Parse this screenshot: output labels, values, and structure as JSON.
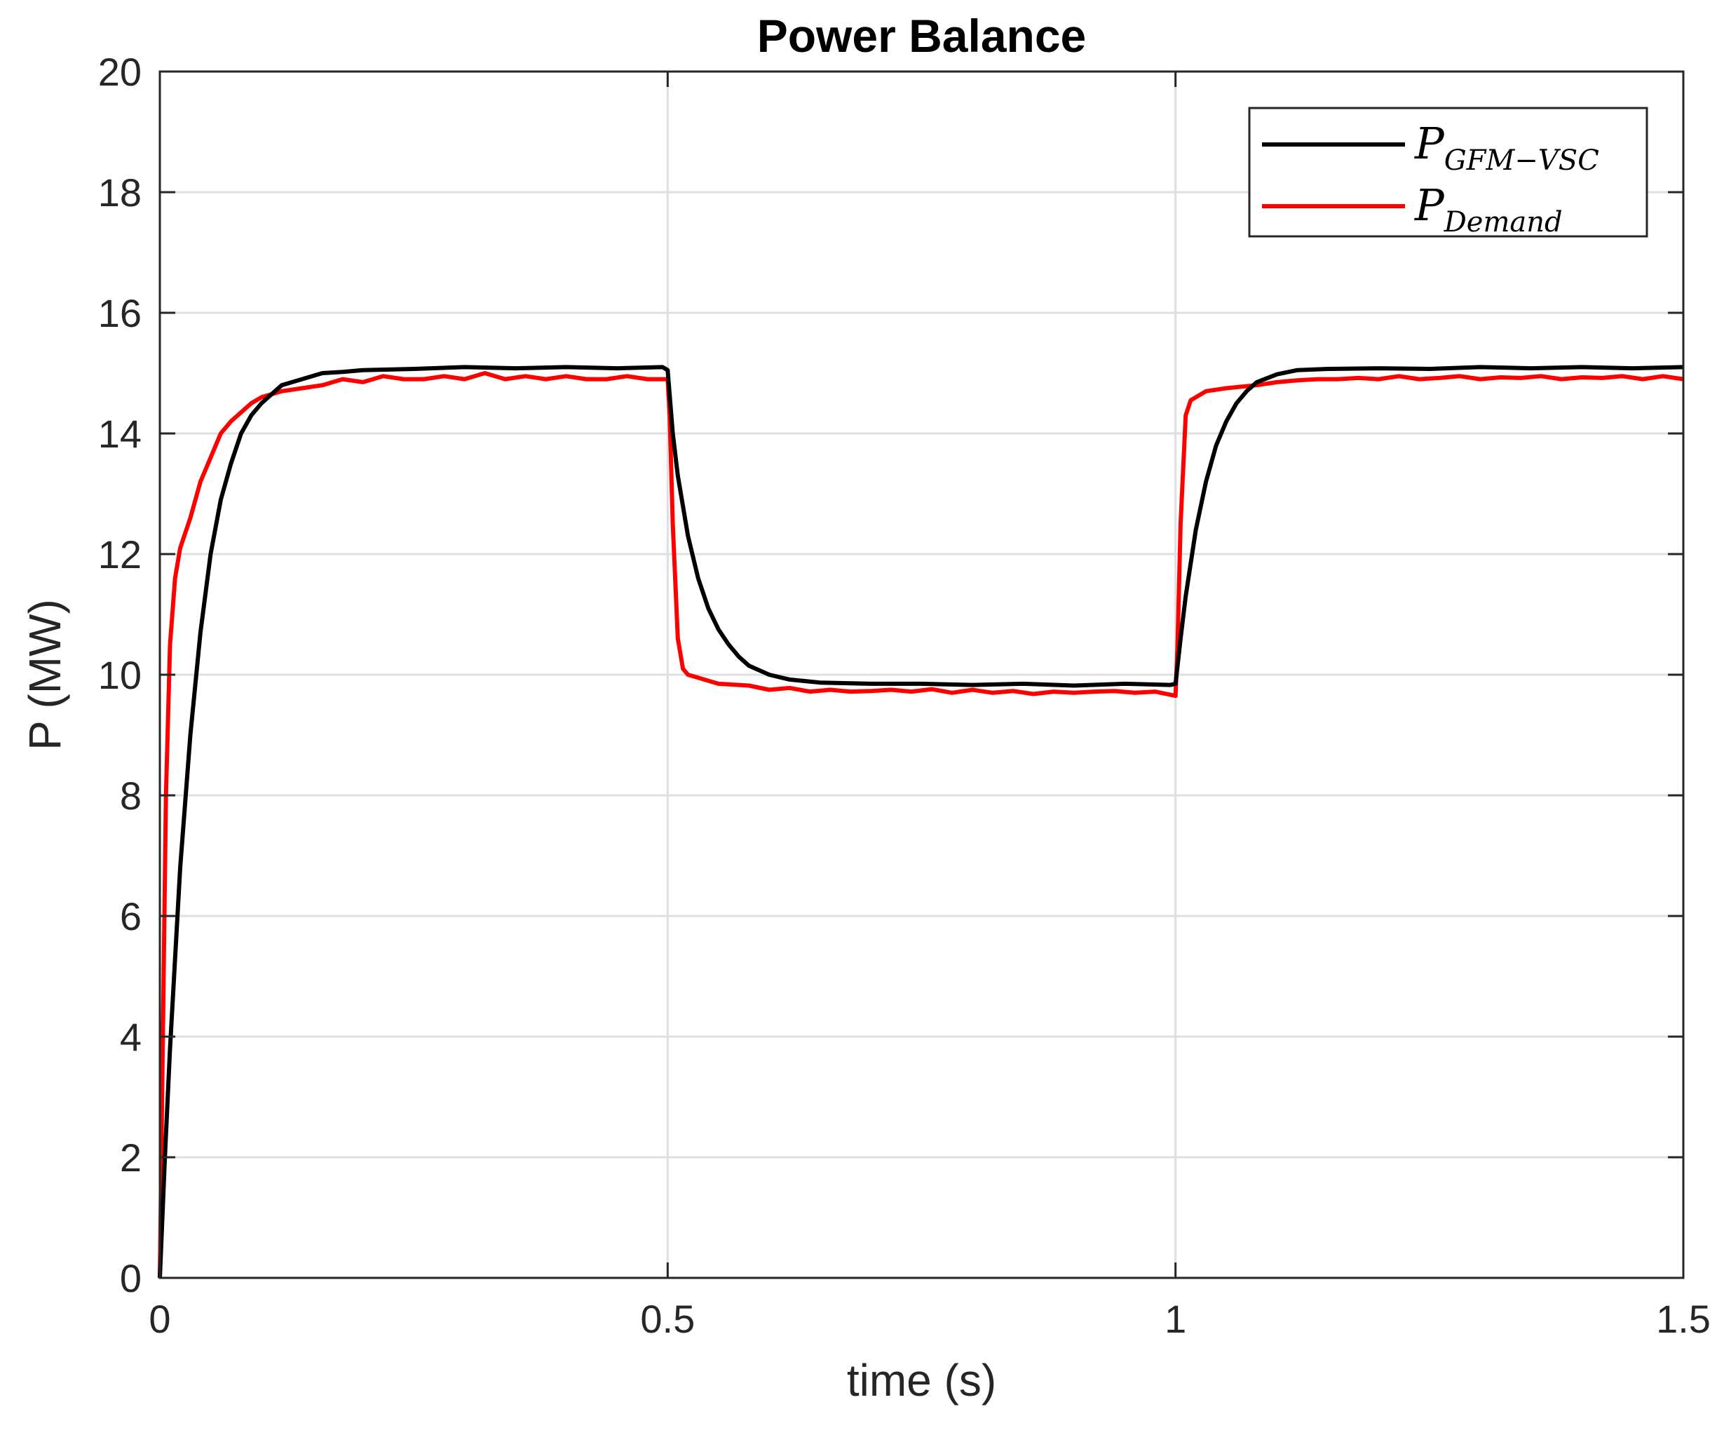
{
  "chart_data": {
    "type": "line",
    "title": "Power Balance",
    "xlabel": "time (s)",
    "ylabel": "P (MW)",
    "xlim": [
      0,
      1.5
    ],
    "ylim": [
      0,
      20
    ],
    "xticks": [
      0,
      0.5,
      1,
      1.5
    ],
    "xtick_labels": [
      "0",
      "0.5",
      "1",
      "1.5"
    ],
    "yticks": [
      0,
      2,
      4,
      6,
      8,
      10,
      12,
      14,
      16,
      18,
      20
    ],
    "ytick_labels": [
      "0",
      "2",
      "4",
      "6",
      "8",
      "10",
      "12",
      "14",
      "16",
      "18",
      "20"
    ],
    "grid": true,
    "legend": {
      "placement": "top-right"
    },
    "series": [
      {
        "name": "P_GFM-VSC",
        "label_main": "P",
        "label_sub": "GFM−VSC",
        "color": "#000000",
        "x": [
          0,
          0.005,
          0.01,
          0.02,
          0.03,
          0.04,
          0.05,
          0.06,
          0.07,
          0.08,
          0.09,
          0.1,
          0.12,
          0.14,
          0.16,
          0.18,
          0.2,
          0.25,
          0.3,
          0.35,
          0.4,
          0.45,
          0.495,
          0.5,
          0.505,
          0.51,
          0.52,
          0.53,
          0.54,
          0.55,
          0.56,
          0.57,
          0.58,
          0.6,
          0.62,
          0.65,
          0.7,
          0.75,
          0.8,
          0.85,
          0.9,
          0.95,
          0.995,
          1.0,
          1.005,
          1.01,
          1.02,
          1.03,
          1.04,
          1.05,
          1.06,
          1.07,
          1.08,
          1.1,
          1.12,
          1.15,
          1.2,
          1.25,
          1.3,
          1.35,
          1.4,
          1.45,
          1.5
        ],
        "y": [
          0,
          2.0,
          3.8,
          6.8,
          9.0,
          10.7,
          12.0,
          12.9,
          13.5,
          14.0,
          14.3,
          14.5,
          14.8,
          14.9,
          15.0,
          15.02,
          15.05,
          15.07,
          15.1,
          15.08,
          15.1,
          15.08,
          15.1,
          15.05,
          14.0,
          13.3,
          12.3,
          11.6,
          11.1,
          10.75,
          10.5,
          10.3,
          10.15,
          10.0,
          9.92,
          9.87,
          9.85,
          9.85,
          9.83,
          9.85,
          9.82,
          9.85,
          9.83,
          9.85,
          10.6,
          11.3,
          12.4,
          13.2,
          13.8,
          14.2,
          14.5,
          14.7,
          14.85,
          14.98,
          15.05,
          15.07,
          15.08,
          15.07,
          15.1,
          15.08,
          15.1,
          15.08,
          15.1
        ]
      },
      {
        "name": "P_Demand",
        "label_main": "P",
        "label_sub": "Demand",
        "color": "#ff0000",
        "x": [
          0,
          0.003,
          0.006,
          0.01,
          0.015,
          0.02,
          0.03,
          0.04,
          0.05,
          0.06,
          0.07,
          0.08,
          0.09,
          0.1,
          0.12,
          0.14,
          0.16,
          0.18,
          0.2,
          0.22,
          0.24,
          0.26,
          0.28,
          0.3,
          0.32,
          0.34,
          0.36,
          0.38,
          0.4,
          0.42,
          0.44,
          0.46,
          0.48,
          0.5,
          0.502,
          0.505,
          0.51,
          0.515,
          0.52,
          0.53,
          0.55,
          0.58,
          0.6,
          0.62,
          0.64,
          0.66,
          0.68,
          0.7,
          0.72,
          0.74,
          0.76,
          0.78,
          0.8,
          0.82,
          0.84,
          0.86,
          0.88,
          0.9,
          0.92,
          0.94,
          0.96,
          0.98,
          1.0,
          1.002,
          1.005,
          1.01,
          1.015,
          1.02,
          1.03,
          1.05,
          1.08,
          1.1,
          1.12,
          1.14,
          1.16,
          1.18,
          1.2,
          1.22,
          1.24,
          1.26,
          1.28,
          1.3,
          1.32,
          1.34,
          1.36,
          1.38,
          1.4,
          1.42,
          1.44,
          1.46,
          1.48,
          1.5
        ],
        "y": [
          0,
          4.0,
          8.0,
          10.5,
          11.6,
          12.1,
          12.6,
          13.2,
          13.6,
          14.0,
          14.2,
          14.35,
          14.5,
          14.6,
          14.7,
          14.75,
          14.8,
          14.9,
          14.85,
          14.95,
          14.9,
          14.9,
          14.95,
          14.9,
          15.0,
          14.9,
          14.95,
          14.9,
          14.95,
          14.9,
          14.9,
          14.95,
          14.9,
          14.9,
          14.3,
          12.5,
          10.6,
          10.1,
          10.0,
          9.95,
          9.85,
          9.82,
          9.75,
          9.78,
          9.72,
          9.75,
          9.72,
          9.73,
          9.75,
          9.72,
          9.76,
          9.7,
          9.75,
          9.7,
          9.73,
          9.68,
          9.72,
          9.7,
          9.72,
          9.73,
          9.7,
          9.72,
          9.65,
          10.5,
          12.5,
          14.3,
          14.55,
          14.6,
          14.7,
          14.75,
          14.8,
          14.85,
          14.88,
          14.9,
          14.9,
          14.92,
          14.9,
          14.95,
          14.9,
          14.92,
          14.95,
          14.9,
          14.93,
          14.92,
          14.95,
          14.9,
          14.93,
          14.92,
          14.95,
          14.9,
          14.95,
          14.9
        ]
      }
    ]
  }
}
